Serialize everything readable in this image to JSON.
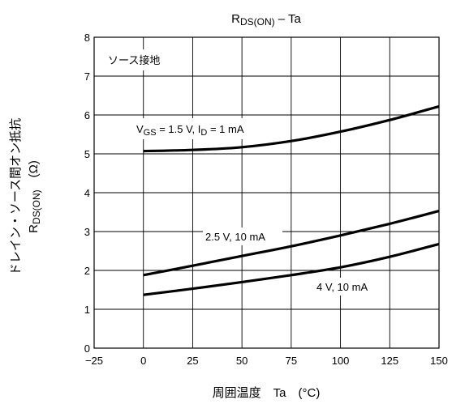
{
  "chart_data": {
    "type": "line",
    "title": "RDS(ON) – Ta",
    "title_main": "R",
    "title_sub": "DS(ON)",
    "title_tail": " – Ta",
    "xlabel": "周囲温度　Ta　(°C)",
    "ylabel_line1": "ドレイン・ソース間オン抵抗",
    "ylabel_line2_main": "R",
    "ylabel_line2_sub": "DS(ON)",
    "ylabel_line2_tail": "　(Ω)",
    "xlim": [
      -25,
      150
    ],
    "ylim": [
      0,
      8
    ],
    "x_ticks": [
      "−25",
      "0",
      "25",
      "50",
      "75",
      "100",
      "125",
      "150"
    ],
    "y_ticks": [
      "0",
      "1",
      "2",
      "3",
      "4",
      "5",
      "6",
      "7",
      "8"
    ],
    "grid": true,
    "condition_label": "ソース接地",
    "series": [
      {
        "label_parts": [
          "V",
          "GS",
          " = 1.5 V, I",
          "D",
          " = 1 mA"
        ],
        "x": [
          0,
          25,
          50,
          75,
          100,
          125,
          150
        ],
        "y": [
          5.07,
          5.1,
          5.17,
          5.33,
          5.57,
          5.87,
          6.22
        ]
      },
      {
        "name": "2.5 V, 10 mA",
        "x": [
          0,
          25,
          50,
          75,
          100,
          125,
          150
        ],
        "y": [
          1.88,
          2.12,
          2.37,
          2.62,
          2.9,
          3.2,
          3.53
        ]
      },
      {
        "name": "4 V, 10 mA",
        "x": [
          0,
          25,
          50,
          75,
          100,
          125,
          150
        ],
        "y": [
          1.37,
          1.53,
          1.7,
          1.88,
          2.08,
          2.35,
          2.68
        ]
      }
    ]
  }
}
